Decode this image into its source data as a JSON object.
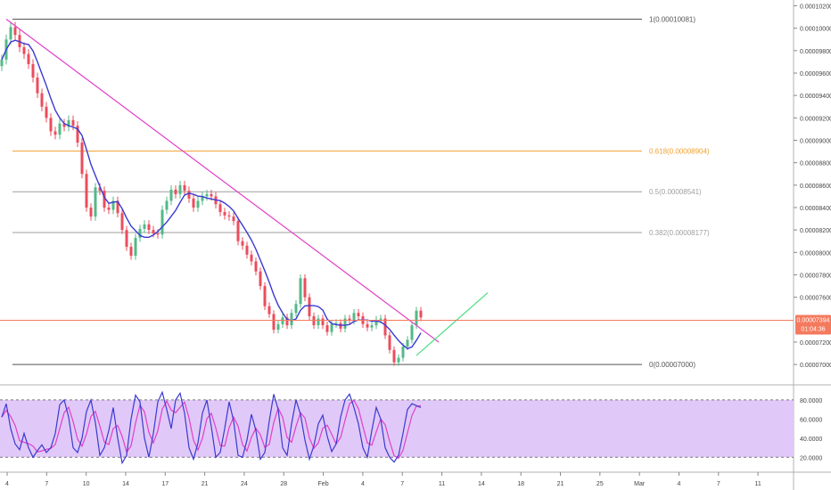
{
  "chart_data": {
    "type": "candlestick",
    "price_axis": {
      "ticks": [
        "0.00010200",
        "0.00010000",
        "0.00009800",
        "0.00009600",
        "0.00009400",
        "0.00009200",
        "0.00009000",
        "0.00008800",
        "0.00008600",
        "0.00008400",
        "0.00008200",
        "0.00008000",
        "0.00007800",
        "0.00007600",
        "0.00007200",
        "0.00007000"
      ],
      "ylim": [
        6.85e-05,
        0.0001022
      ]
    },
    "date_axis": {
      "ticks": [
        "4",
        "7",
        "10",
        "14",
        "17",
        "21",
        "24",
        "28",
        "Feb",
        "4",
        "7",
        "11",
        "14",
        "18",
        "21",
        "25",
        "Mar",
        "4",
        "7",
        "11"
      ]
    },
    "current_price": {
      "label": "0.00007394",
      "countdown": "01:04:36",
      "color": "#f47a5e"
    },
    "fibonacci": [
      {
        "level": "1",
        "price": 0.00010081,
        "label": "1(0.00010081)",
        "color": "#555555"
      },
      {
        "level": "0.618",
        "price": 8.904e-05,
        "label": "0.618(0.00008904)",
        "color": "#f0a030"
      },
      {
        "level": "0.5",
        "price": 8.541e-05,
        "label": "0.5(0.00008541)",
        "color": "#9e9e9e"
      },
      {
        "level": "0.382",
        "price": 8.177e-05,
        "label": "0.382(0.00008177)",
        "color": "#9e9e9e"
      },
      {
        "level": "0",
        "price": 7e-05,
        "label": "0(0.00007000)",
        "color": "#555555"
      }
    ],
    "trendlines": [
      {
        "color": "#e040c8",
        "from": [
          1,
          0.00010081
        ],
        "to": [
          98,
          7.2e-05
        ]
      },
      {
        "color": "#4ade80",
        "from": [
          93,
          7.08e-05
        ],
        "to": [
          109,
          7.64e-05
        ]
      }
    ],
    "moving_average_color": "#3a3ad0",
    "price_series": [
      9.72e-05,
      9.9e-05,
      0.0001001,
      9.94e-05,
      9.83e-05,
      9.77e-05,
      9.68e-05,
      9.56e-05,
      9.42e-05,
      9.3e-05,
      9.2e-05,
      9.08e-05,
      9.05e-05,
      9.15e-05,
      9.12e-05,
      9.18e-05,
      9.13e-05,
      8.98e-05,
      8.7e-05,
      8.4e-05,
      8.32e-05,
      8.58e-05,
      8.55e-05,
      8.4e-05,
      8.38e-05,
      8.46e-05,
      8.35e-05,
      8.2e-05,
      8.05e-05,
      7.97e-05,
      8.13e-05,
      8.21e-05,
      8.25e-05,
      8.2e-05,
      8.17e-05,
      8.16e-05,
      8.38e-05,
      8.46e-05,
      8.56e-05,
      8.52e-05,
      8.6e-05,
      8.55e-05,
      8.48e-05,
      8.4e-05,
      8.46e-05,
      8.5e-05,
      8.52e-05,
      8.5e-05,
      8.43e-05,
      8.36e-05,
      8.33e-05,
      8.32e-05,
      8.28e-05,
      8.1e-05,
      8.06e-05,
      7.98e-05,
      7.92e-05,
      7.83e-05,
      7.7e-05,
      7.52e-05,
      7.45e-05,
      7.31e-05,
      7.36e-05,
      7.42e-05,
      7.35e-05,
      7.46e-05,
      7.54e-05,
      7.77e-05,
      7.6e-05,
      7.43e-05,
      7.35e-05,
      7.41e-05,
      7.35e-05,
      7.29e-05,
      7.36e-05,
      7.37e-05,
      7.32e-05,
      7.41e-05,
      7.39e-05,
      7.46e-05,
      7.43e-05,
      7.36e-05,
      7.33e-05,
      7.35e-05,
      7.4e-05,
      7.41e-05,
      7.26e-05,
      7.13e-05,
      7.02e-05,
      7.06e-05,
      7.16e-05,
      7.22e-05,
      7.35e-05,
      7.48e-05,
      7.42e-05
    ],
    "rsi_axis": {
      "ticks": [
        "80.0000",
        "60.0000",
        "40.0000",
        "20.0000"
      ],
      "ylim": [
        10,
        92
      ],
      "upper": 80,
      "lower": 20
    },
    "stoch_rsi": [
      62,
      76,
      50,
      34,
      28,
      45,
      30,
      20,
      27,
      33,
      25,
      30,
      45,
      75,
      80,
      62,
      30,
      25,
      40,
      68,
      80,
      56,
      22,
      30,
      48,
      72,
      40,
      14,
      22,
      60,
      85,
      78,
      40,
      20,
      45,
      78,
      88,
      70,
      50,
      80,
      87,
      66,
      30,
      18,
      35,
      66,
      80,
      52,
      20,
      25,
      50,
      78,
      58,
      22,
      20,
      38,
      65,
      48,
      18,
      25,
      58,
      86,
      70,
      30,
      22,
      55,
      80,
      65,
      38,
      18,
      32,
      55,
      64,
      42,
      26,
      34,
      62,
      80,
      86,
      72,
      55,
      30,
      20,
      48,
      72,
      60,
      30,
      20,
      15,
      22,
      45,
      70,
      76,
      74,
      72
    ],
    "rsi_colors": {
      "k": "#3a3ad0",
      "d": "#e040c8",
      "band": "#e0c8f8"
    }
  }
}
